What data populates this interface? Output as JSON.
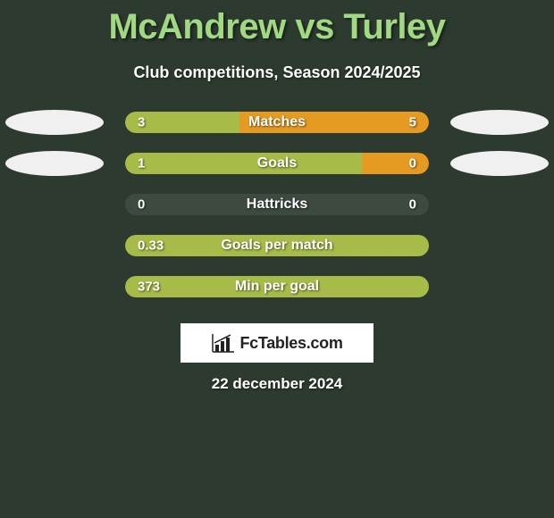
{
  "title": "McAndrew vs Turley",
  "subtitle": "Club competitions, Season 2024/2025",
  "date": "22 december 2024",
  "colors": {
    "background": "#2d3a2f",
    "title": "#a1d884",
    "subtitle": "#ffffff",
    "ellipse": "#f0f0f0",
    "bar_left": "#a7bc48",
    "bar_right": "#e59a22",
    "track": "#3d4a3f",
    "logo_bg": "#ffffff",
    "logo_text": "#222222"
  },
  "rows": [
    {
      "name": "Matches",
      "left_value": "3",
      "right_value": "5",
      "left_pct": 37.5,
      "right_pct": 62.5,
      "show_ellipse": true
    },
    {
      "name": "Goals",
      "left_value": "1",
      "right_value": "0",
      "left_pct": 78,
      "right_pct": 22,
      "show_ellipse": true
    },
    {
      "name": "Hattricks",
      "left_value": "0",
      "right_value": "0",
      "left_pct": 0,
      "right_pct": 0,
      "show_ellipse": false
    },
    {
      "name": "Goals per match",
      "left_value": "0.33",
      "right_value": "",
      "left_pct": 100,
      "right_pct": 0,
      "show_ellipse": false
    },
    {
      "name": "Min per goal",
      "left_value": "373",
      "right_value": "",
      "left_pct": 100,
      "right_pct": 0,
      "show_ellipse": false
    }
  ],
  "logo_text": "FcTables.com"
}
